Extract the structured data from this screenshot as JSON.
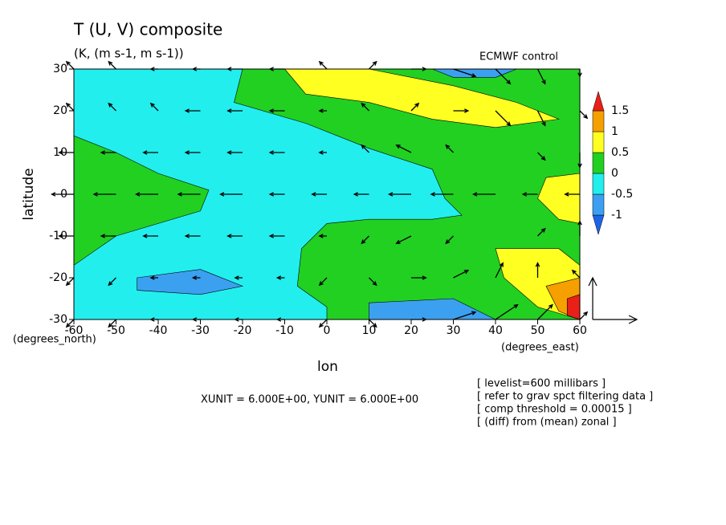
{
  "chart_data": {
    "type": "contour-vector",
    "title": "T (U, V) composite",
    "subtitle": "(K, (m s-1, m s-1))",
    "source": "ECMWF control",
    "x_label": "lon",
    "y_label": "latitude",
    "x_units": "(degrees_east)",
    "y_units": "(degrees_north)",
    "unit_note": "XUNIT = 6.000E+00, YUNIT = 6.000E+00",
    "notes": [
      "[ levelist=600 millibars ]",
      "[ refer to grav spct filtering data ]",
      "[ comp threshold = 0.00015 ]",
      "[ (diff) from (mean) zonal ]"
    ],
    "xlim": [
      -60,
      60
    ],
    "ylim": [
      -30,
      30
    ],
    "xticks": [
      -60,
      -50,
      -40,
      -30,
      -20,
      -10,
      0,
      10,
      20,
      30,
      40,
      50,
      60
    ],
    "yticks": [
      -30,
      -20,
      -10,
      0,
      10,
      20,
      30
    ],
    "levels": [
      -1,
      -0.5,
      0,
      0.5,
      1,
      1.5
    ],
    "level_colors": [
      "#1e64e6",
      "#3ca0f0",
      "#22eeee",
      "#22d022",
      "#ffff22",
      "#f5a000",
      "#e82018"
    ],
    "background_value": 0.25,
    "regions": [
      {
        "value": -0.25,
        "lon": [
          -60,
          -20,
          -22,
          -5,
          10,
          25,
          28,
          32,
          25,
          10,
          0,
          -6,
          -7,
          0,
          0,
          -60,
          -60,
          -50,
          -30,
          -28,
          -40,
          -50,
          -60
        ],
        "lat": [
          30,
          30,
          22,
          17,
          11,
          6,
          -1,
          -5,
          -6,
          -6,
          -7,
          -13,
          -22,
          -27,
          -30,
          -30,
          -17,
          -10,
          -4,
          1,
          5,
          10,
          14
        ]
      },
      {
        "value": -0.75,
        "lon": [
          -45,
          -30,
          -20,
          -30,
          -45
        ],
        "lat": [
          -20,
          -18,
          -22,
          -24,
          -23
        ]
      },
      {
        "value": -0.75,
        "lon": [
          10,
          30,
          40,
          10
        ],
        "lat": [
          -26,
          -25,
          -30,
          -30
        ]
      },
      {
        "value": -0.75,
        "lon": [
          25,
          45,
          40,
          30
        ],
        "lat": [
          30,
          30,
          28,
          28
        ]
      },
      {
        "value": 0.75,
        "lon": [
          -10,
          10,
          30,
          45,
          55,
          40,
          25,
          10,
          -5
        ],
        "lat": [
          30,
          30,
          26,
          22,
          18,
          16,
          18,
          22,
          24
        ]
      },
      {
        "value": 0.75,
        "lon": [
          52,
          60,
          60,
          55,
          50
        ],
        "lat": [
          4,
          5,
          -7,
          -6,
          -1
        ]
      },
      {
        "value": 0.75,
        "lon": [
          40,
          55,
          60,
          60,
          50,
          42
        ],
        "lat": [
          -13,
          -13,
          -17,
          -30,
          -27,
          -20
        ]
      },
      {
        "value": 1.25,
        "lon": [
          52,
          60,
          60,
          55
        ],
        "lat": [
          -22,
          -20,
          -30,
          -28
        ]
      },
      {
        "value": 1.75,
        "lon": [
          57,
          60,
          60,
          57
        ],
        "lat": [
          -25,
          -24,
          -30,
          -29
        ]
      }
    ],
    "vectors": {
      "lons": [
        -60,
        -50,
        -40,
        -30,
        -20,
        -10,
        0,
        10,
        20,
        30,
        40,
        50,
        60
      ],
      "lats": [
        30,
        20,
        10,
        0,
        -10,
        -20,
        -30
      ],
      "u": [
        [
          -1,
          -1,
          -1,
          -1,
          -2,
          -2,
          -1,
          1,
          2,
          3,
          2,
          1,
          0
        ],
        [
          -1,
          -1,
          -1,
          -2,
          -2,
          -2,
          -1,
          -1,
          1,
          2,
          2,
          1,
          1
        ],
        [
          -2,
          -2,
          -2,
          -2,
          -2,
          -2,
          -1,
          -1,
          -2,
          -1,
          0,
          1,
          0
        ],
        [
          -3,
          -3,
          -3,
          -3,
          -3,
          -2,
          -2,
          -2,
          -3,
          -3,
          -3,
          -2,
          -2
        ],
        [
          -2,
          -2,
          -2,
          -2,
          -2,
          -2,
          -1,
          -1,
          -2,
          -1,
          0,
          1,
          0
        ],
        [
          -1,
          -1,
          -1,
          -1,
          -1,
          -1,
          -1,
          1,
          2,
          2,
          1,
          0,
          -1
        ],
        [
          -1,
          -1,
          -1,
          -1,
          -1,
          -1,
          -1,
          1,
          2,
          3,
          3,
          2,
          1
        ]
      ],
      "v": [
        [
          1,
          1,
          0,
          0,
          0,
          0,
          1,
          1,
          0,
          -1,
          -2,
          -2,
          -1
        ],
        [
          1,
          1,
          1,
          0,
          0,
          0,
          0,
          1,
          1,
          0,
          -2,
          -2,
          -1
        ],
        [
          0,
          0,
          0,
          0,
          0,
          0,
          0,
          1,
          1,
          1,
          0,
          -1,
          -2
        ],
        [
          0,
          0,
          0,
          0,
          0,
          0,
          0,
          0,
          0,
          0,
          0,
          0,
          0
        ],
        [
          0,
          0,
          0,
          0,
          0,
          0,
          0,
          -1,
          -1,
          -1,
          0,
          1,
          2
        ],
        [
          -1,
          -1,
          0,
          0,
          0,
          0,
          -1,
          -1,
          0,
          1,
          2,
          2,
          1
        ],
        [
          -1,
          -1,
          0,
          0,
          0,
          0,
          -1,
          -1,
          0,
          1,
          2,
          2,
          1
        ]
      ]
    }
  }
}
